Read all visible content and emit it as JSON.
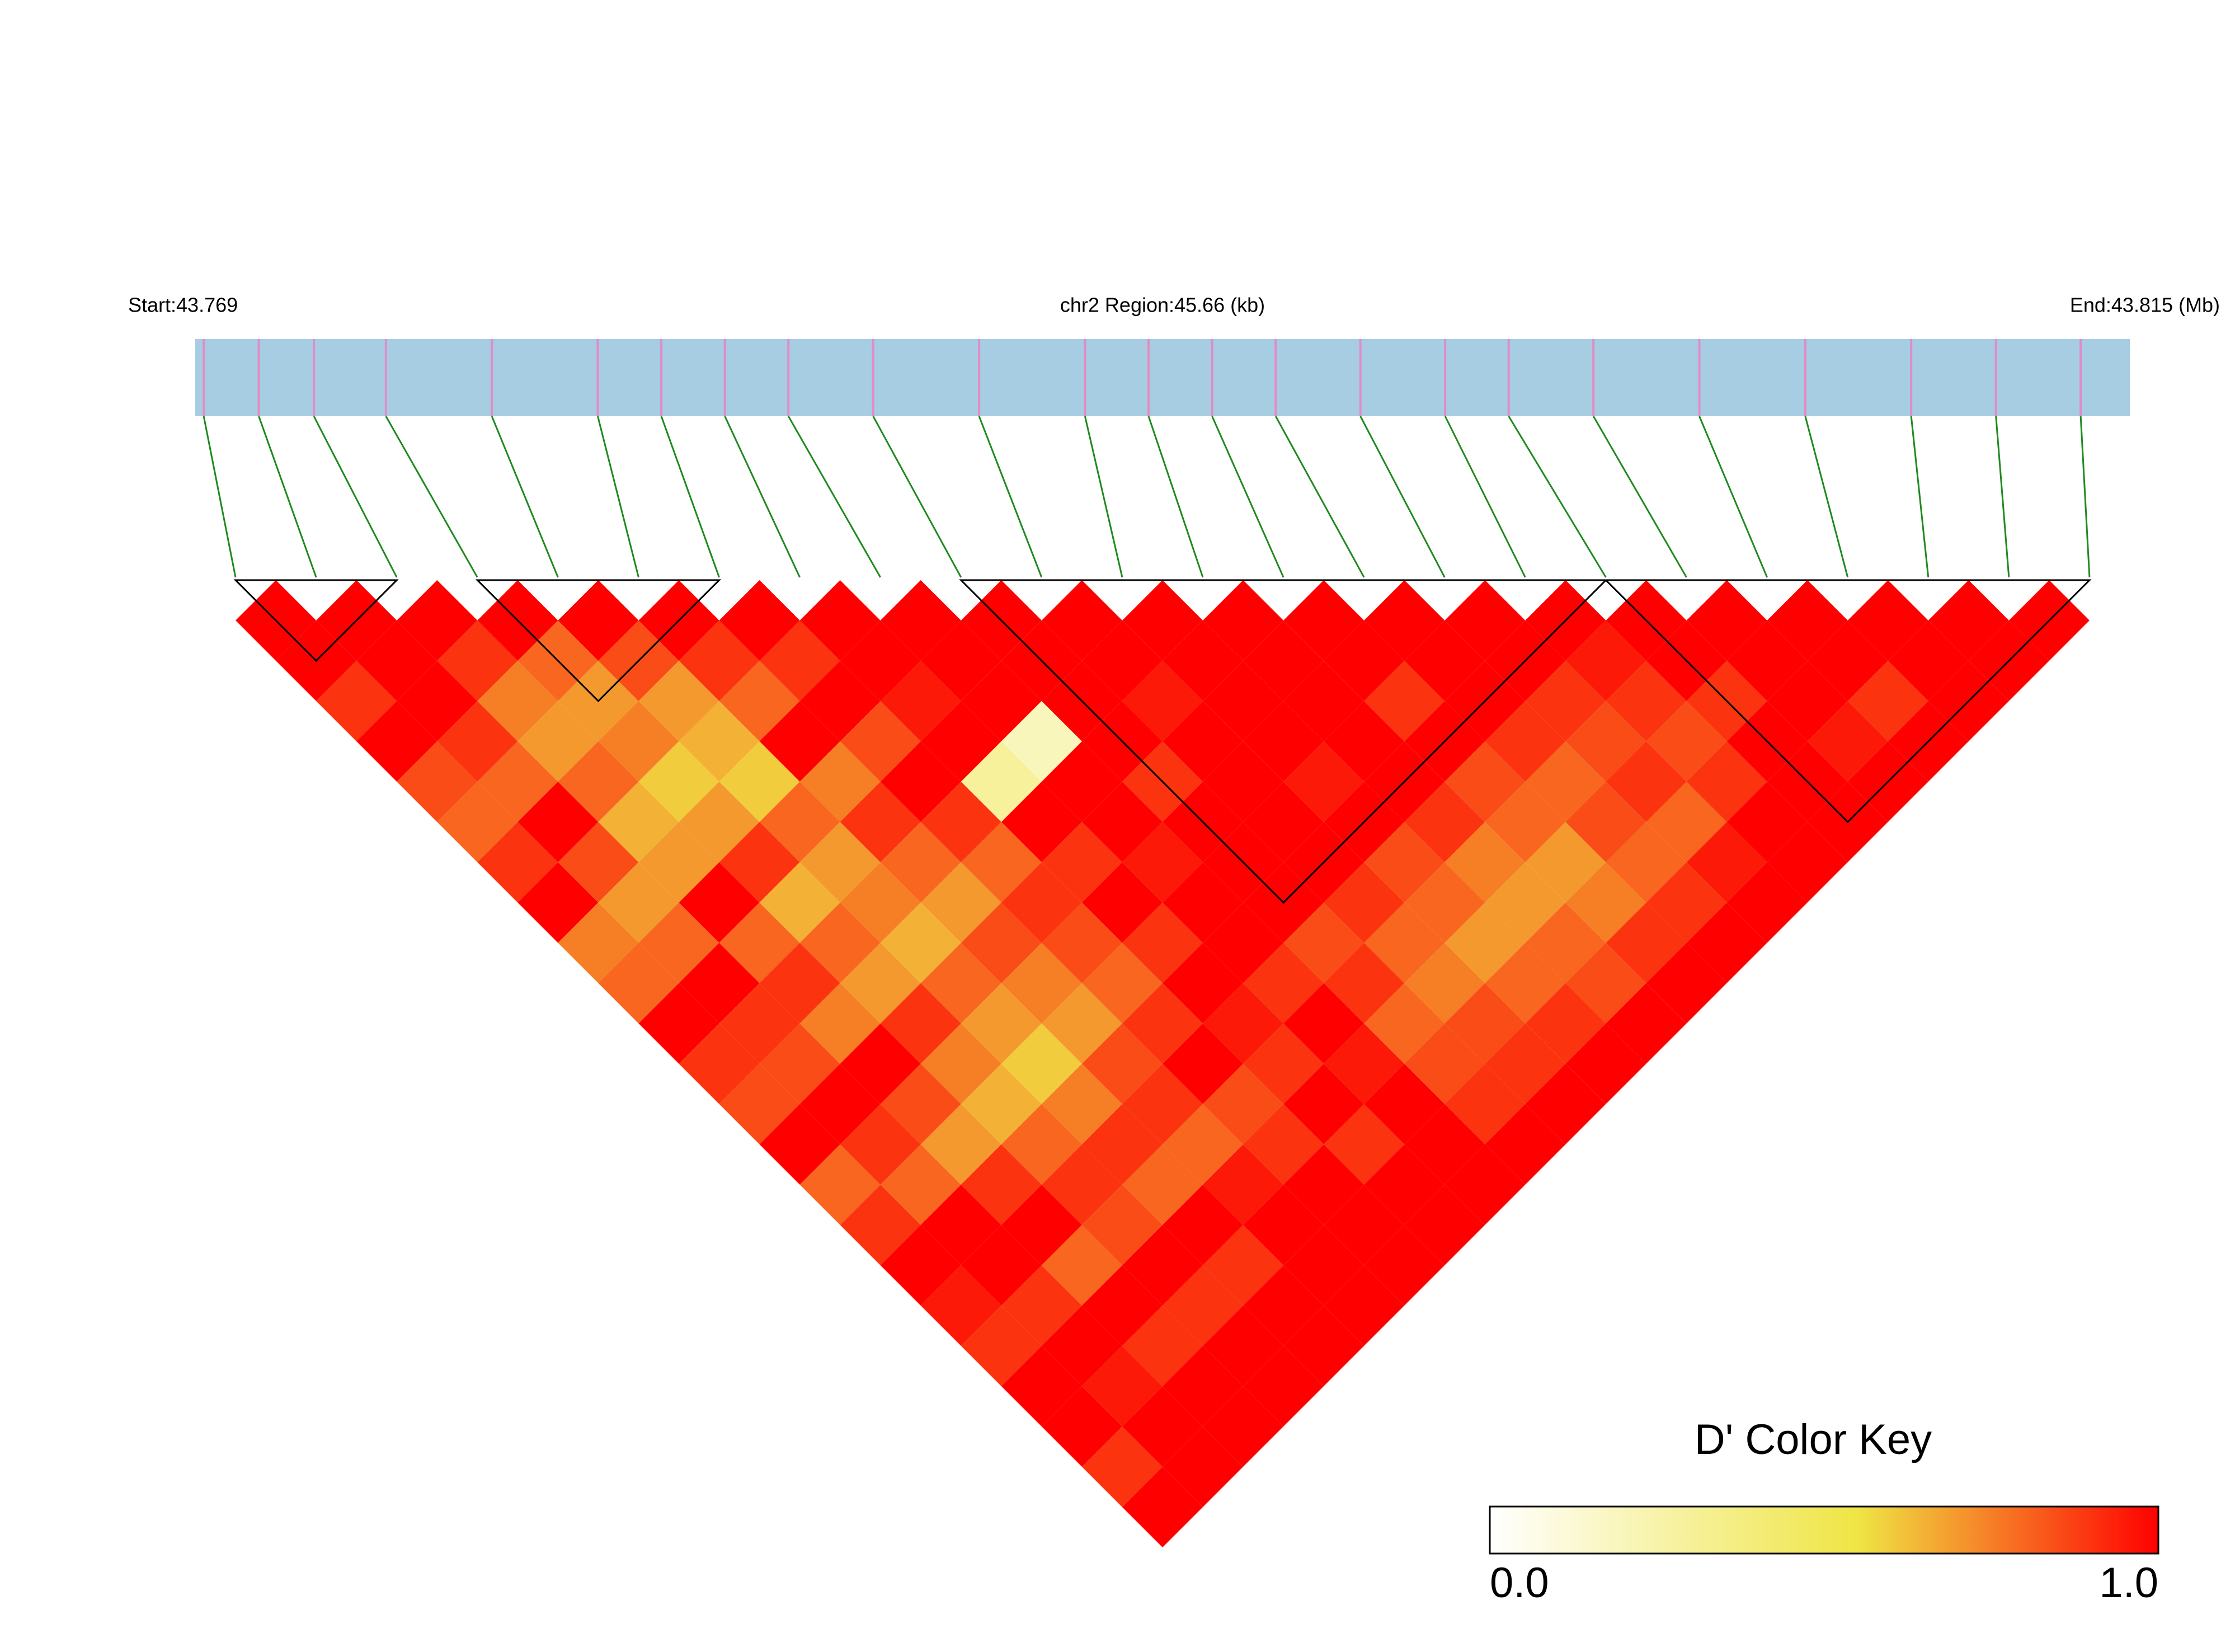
{
  "chart_data": {
    "type": "ld_heatmap",
    "start_label": "Start:43.769",
    "region_label": "chr2 Region:45.66 (kb)",
    "end_label": "End:43.815 (Mb)",
    "key_title": "D' Color Key",
    "xlim": [
      0,
      45.66
    ],
    "snp_positions": [
      0.2,
      1.5,
      2.8,
      4.5,
      7.0,
      9.5,
      11.0,
      12.5,
      14.0,
      16.0,
      18.5,
      21.0,
      22.5,
      24.0,
      25.5,
      27.5,
      29.5,
      31.0,
      33.0,
      35.5,
      38.0,
      40.5,
      42.5,
      44.5
    ],
    "dprime": [
      [
        1,
        1,
        0.9,
        1,
        0.85,
        0.8,
        0.9,
        1,
        0.75,
        0.8,
        1,
        0.9,
        0.85,
        1,
        0.8,
        0.9,
        1,
        0.95,
        0.9,
        1,
        1,
        0.9,
        1
      ],
      [
        1,
        1,
        1,
        0.9,
        0.8,
        1,
        0.85,
        0.7,
        0.8,
        1,
        0.9,
        0.85,
        1,
        0.9,
        0.8,
        1,
        1,
        0.9,
        1,
        0.95,
        1,
        1
      ],
      [
        1,
        0.9,
        0.75,
        0.7,
        0.8,
        0.65,
        0.7,
        1,
        0.8,
        0.9,
        0.75,
        1,
        0.85,
        0.7,
        0.9,
        1,
        0.8,
        1,
        0.9,
        1,
        1
      ],
      [
        1,
        0.8,
        0.7,
        0.75,
        0.6,
        0.7,
        0.9,
        0.65,
        0.8,
        0.7,
        0.9,
        0.75,
        0.65,
        0.8,
        0.9,
        0.85,
        1,
        0.9,
        1,
        1
      ],
      [
        1,
        0.85,
        0.7,
        0.65,
        0.6,
        0.8,
        0.7,
        0.75,
        0.65,
        0.8,
        0.7,
        0.6,
        0.75,
        0.9,
        0.8,
        1,
        0.9,
        1,
        1
      ],
      [
        1,
        0.9,
        0.8,
        1,
        0.75,
        0.9,
        0.8,
        0.7,
        0.85,
        0.75,
        0.7,
        0.85,
        0.9,
        0.8,
        0.95,
        1,
        1,
        1
      ],
      [
        1,
        0.9,
        1,
        0.85,
        1,
        0.9,
        0.8,
        0.9,
        0.85,
        0.8,
        0.9,
        1,
        0.85,
        0.9,
        1,
        1,
        1
      ],
      [
        1,
        1,
        0.95,
        1,
        0.3,
        1,
        0.9,
        1,
        0.9,
        1,
        0.95,
        0.9,
        1,
        0.9,
        1,
        1
      ],
      [
        1,
        1,
        1,
        0.2,
        1,
        1,
        0.95,
        1,
        1,
        0.9,
        1,
        0.95,
        1,
        1,
        1
      ],
      [
        1,
        1,
        1,
        1,
        0.9,
        1,
        1,
        1,
        0.85,
        0.9,
        0.8,
        0.85,
        0.9,
        1
      ],
      [
        1,
        1,
        0.95,
        1,
        1,
        1,
        1,
        0.9,
        0.8,
        0.75,
        0.85,
        0.9,
        1
      ],
      [
        1,
        1,
        1,
        1,
        0.95,
        1,
        0.85,
        0.8,
        0.7,
        0.8,
        0.9,
        1
      ],
      [
        1,
        1,
        1,
        1,
        1,
        0.9,
        0.75,
        0.7,
        0.8,
        0.85,
        1
      ],
      [
        1,
        1,
        0.9,
        1,
        0.85,
        0.8,
        0.7,
        0.75,
        0.9,
        1
      ],
      [
        1,
        1,
        1,
        0.9,
        0.8,
        0.85,
        0.8,
        0.9,
        1
      ],
      [
        1,
        1,
        0.9,
        0.85,
        0.9,
        0.8,
        0.95,
        1
      ],
      [
        1,
        0.95,
        0.9,
        0.85,
        0.9,
        1,
        1
      ],
      [
        1,
        1,
        0.9,
        1,
        1,
        1
      ],
      [
        1,
        1,
        1,
        0.95,
        1
      ],
      [
        1,
        1,
        0.9,
        1
      ],
      [
        1,
        1,
        1
      ],
      [
        1,
        1
      ],
      [
        1
      ]
    ],
    "blocks": [
      [
        0,
        2
      ],
      [
        3,
        6
      ],
      [
        9,
        17
      ],
      [
        17,
        23
      ]
    ],
    "bar_color": "#a6cde2",
    "snp_color": "#e48bc4",
    "link_color": "#1f8a1f",
    "block_color": "#000000",
    "color_stops": [
      {
        "value": 0,
        "color": "#ffffff"
      },
      {
        "value": 0.55,
        "color": "#efe545"
      },
      {
        "value": 1,
        "color": "#ff0000"
      }
    ],
    "key_lim": [
      0,
      1
    ],
    "key_ticks": [
      {
        "value": 0,
        "label": "0.0"
      },
      {
        "value": 1,
        "label": "1.0"
      }
    ]
  }
}
